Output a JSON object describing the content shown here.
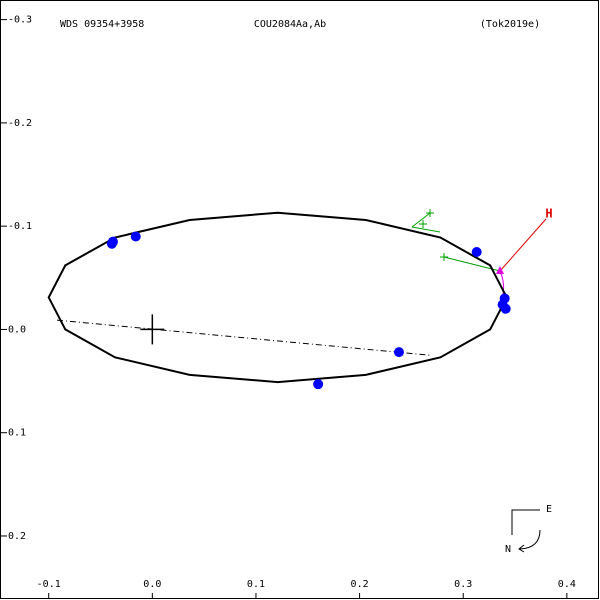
{
  "chart_data": {
    "type": "orbit",
    "title": "WDS 09354+3958",
    "subtitle": "COU2084Aa,Ab",
    "reference": "(Tok2019e)",
    "xlim": [
      -0.147,
      0.432
    ],
    "ylim": [
      -0.319,
      0.262
    ],
    "xticks": [
      -0.1,
      {
        "value": 0,
        "label": "0.0"
      },
      0.1,
      0.2,
      0.3,
      0.4
    ],
    "yticks": [
      -0.3,
      -0.2,
      -0.1,
      {
        "value": 0,
        "label": "0.0"
      },
      0.1,
      0.2
    ],
    "orbit": {
      "color": "#000000",
      "x": [
        0.342,
        0.326,
        0.278,
        0.206,
        0.121,
        0.036,
        -0.036,
        -0.084,
        -0.1,
        -0.084,
        -0.036,
        0.036,
        0.121,
        0.206,
        0.278,
        0.326,
        0.342
      ],
      "y": [
        -0.031,
        -0.062,
        -0.089,
        -0.106,
        -0.113,
        -0.106,
        -0.089,
        -0.062,
        -0.031,
        0.0,
        0.027,
        0.044,
        0.051,
        0.044,
        0.027,
        0.0,
        -0.031
      ]
    },
    "nodes": {
      "x": [
        -0.092,
        0.268
      ],
      "y": [
        -0.009,
        0.025
      ]
    },
    "primary": {
      "x": 0,
      "y": 0
    },
    "observations": {
      "color": "#0000ff",
      "x": [
        -0.038,
        -0.039,
        -0.016,
        0.16,
        0.238,
        0.313,
        0.34,
        0.338,
        0.341
      ],
      "y": [
        -0.085,
        -0.083,
        -0.09,
        0.053,
        0.022,
        -0.075,
        -0.03,
        -0.024,
        -0.02
      ]
    },
    "highlight_label": "H",
    "compass_e": "E",
    "compass_n": "N"
  }
}
